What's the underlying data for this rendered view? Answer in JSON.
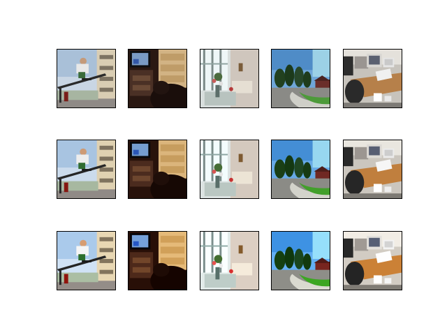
{
  "figure": {
    "rows": 3,
    "columns": 5,
    "scenes": [
      "skateboarder-rail",
      "dark-room-tv-dresser",
      "bright-room-window-flowers",
      "outdoor-street-trees",
      "office-desk-computers"
    ],
    "row_styles": [
      "original",
      "reconstruction-a",
      "reconstruction-b"
    ]
  }
}
